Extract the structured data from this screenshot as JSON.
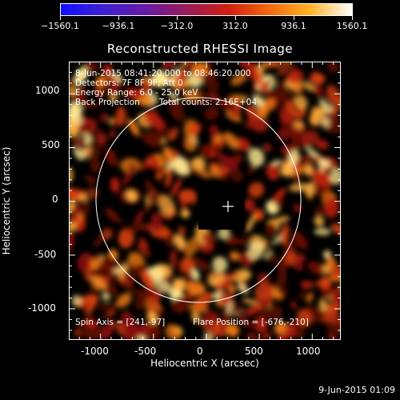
{
  "colorbar": {
    "labels": [
      "−1560.1",
      "−936.1",
      "−312.0",
      "312.0",
      "936.1",
      "1560.1"
    ]
  },
  "title": "Reconstructed RHESSI Image",
  "info": {
    "time_range": "8-Jun-2015 08:41:20.000 to 08:46:20.000",
    "detectors": "Detectors: 7F 8F 9F, Att 0",
    "energy": "Energy Range: 6.0 - 25.0 keV",
    "method": "Back Projection",
    "counts": "Total counts: 2.16E+04",
    "spin_axis": "Spin Axis = [241,-97]",
    "flare_position": "Flare Position = [-676,-210]"
  },
  "axes": {
    "xlabel": "Heliocentric X (arcsec)",
    "ylabel": "Heliocentric Y (arcsec)",
    "xticks": [
      -1000,
      -500,
      0,
      500,
      1000
    ],
    "yticks": [
      1000,
      500,
      0,
      -500,
      -1000
    ],
    "xlim": [
      -1300,
      1270
    ],
    "ylim": [
      -1290,
      1300
    ]
  },
  "colors": {
    "map_low": "#000000",
    "map_mid": "#c0200a",
    "map_high": "#ffe080",
    "limb": "#ffffff"
  },
  "footer": "9-Jun-2015 01:09"
}
